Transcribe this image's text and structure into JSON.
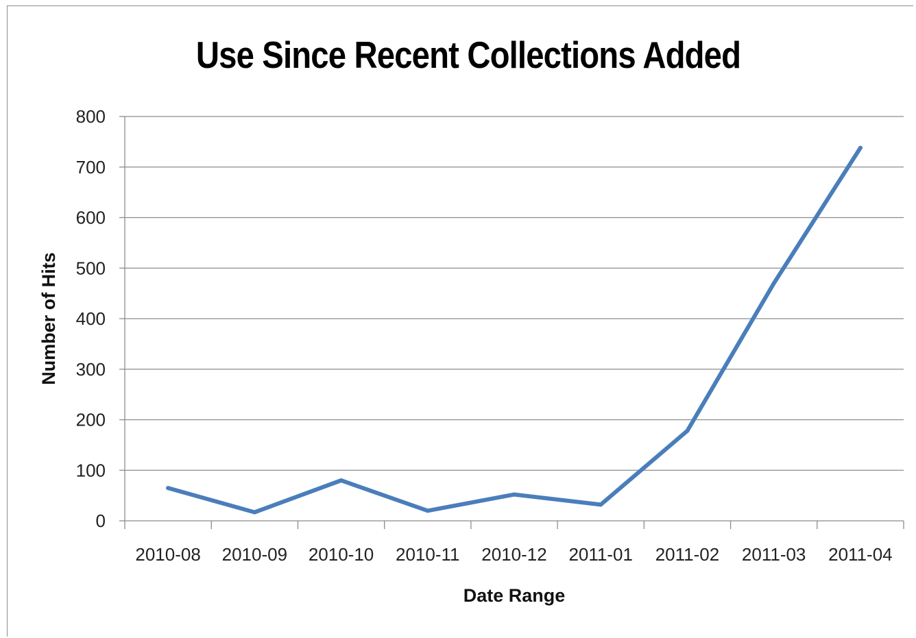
{
  "chart_data": {
    "type": "line",
    "title": "Use Since Recent Collections Added",
    "xlabel": "Date Range",
    "ylabel": "Number of Hits",
    "categories": [
      "2010-08",
      "2010-09",
      "2010-10",
      "2010-11",
      "2010-12",
      "2011-01",
      "2011-02",
      "2011-03",
      "2011-04"
    ],
    "series": [
      {
        "values": [
          65,
          17,
          80,
          20,
          52,
          32,
          178,
          470,
          738
        ]
      }
    ],
    "ylim": [
      0,
      800
    ],
    "yticks": [
      "0",
      "100",
      "200",
      "300",
      "400",
      "500",
      "600",
      "700",
      "800"
    ],
    "grid": true,
    "legend": "none",
    "line_color": "#4a7ebb",
    "grid_color": "#8c8c8c"
  }
}
